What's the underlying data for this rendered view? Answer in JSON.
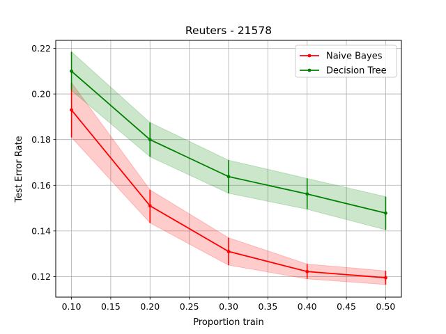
{
  "chart_data": {
    "type": "line",
    "title": "Reuters - 21578",
    "xlabel": "Proportion train",
    "ylabel": "Test Error Rate",
    "xlim": [
      0.08,
      0.52
    ],
    "ylim": [
      0.111,
      0.2235
    ],
    "xticks": [
      0.1,
      0.15,
      0.2,
      0.25,
      0.3,
      0.35,
      0.4,
      0.45,
      0.5
    ],
    "xtick_labels": [
      "0.10",
      "0.15",
      "0.20",
      "0.25",
      "0.30",
      "0.35",
      "0.40",
      "0.45",
      "0.50"
    ],
    "yticks": [
      0.12,
      0.14,
      0.16,
      0.18,
      0.2,
      0.22
    ],
    "ytick_labels": [
      "0.12",
      "0.14",
      "0.16",
      "0.18",
      "0.20",
      "0.22"
    ],
    "grid": true,
    "legend_position": "top-right",
    "series": [
      {
        "name": "Naive Bayes",
        "color": "#ff0000",
        "x": [
          0.1,
          0.2,
          0.3,
          0.4,
          0.5
        ],
        "y": [
          0.193,
          0.151,
          0.131,
          0.1222,
          0.1195
        ],
        "lower": [
          0.181,
          0.1435,
          0.125,
          0.119,
          0.1165
        ],
        "upper": [
          0.205,
          0.158,
          0.137,
          0.1255,
          0.1225
        ]
      },
      {
        "name": "Decision Tree",
        "color": "#008000",
        "x": [
          0.1,
          0.2,
          0.3,
          0.4,
          0.5
        ],
        "y": [
          0.21,
          0.18,
          0.1638,
          0.1562,
          0.1478
        ],
        "lower": [
          0.2015,
          0.1725,
          0.1565,
          0.1495,
          0.1405
        ],
        "upper": [
          0.2185,
          0.1875,
          0.171,
          0.163,
          0.155
        ]
      }
    ]
  }
}
